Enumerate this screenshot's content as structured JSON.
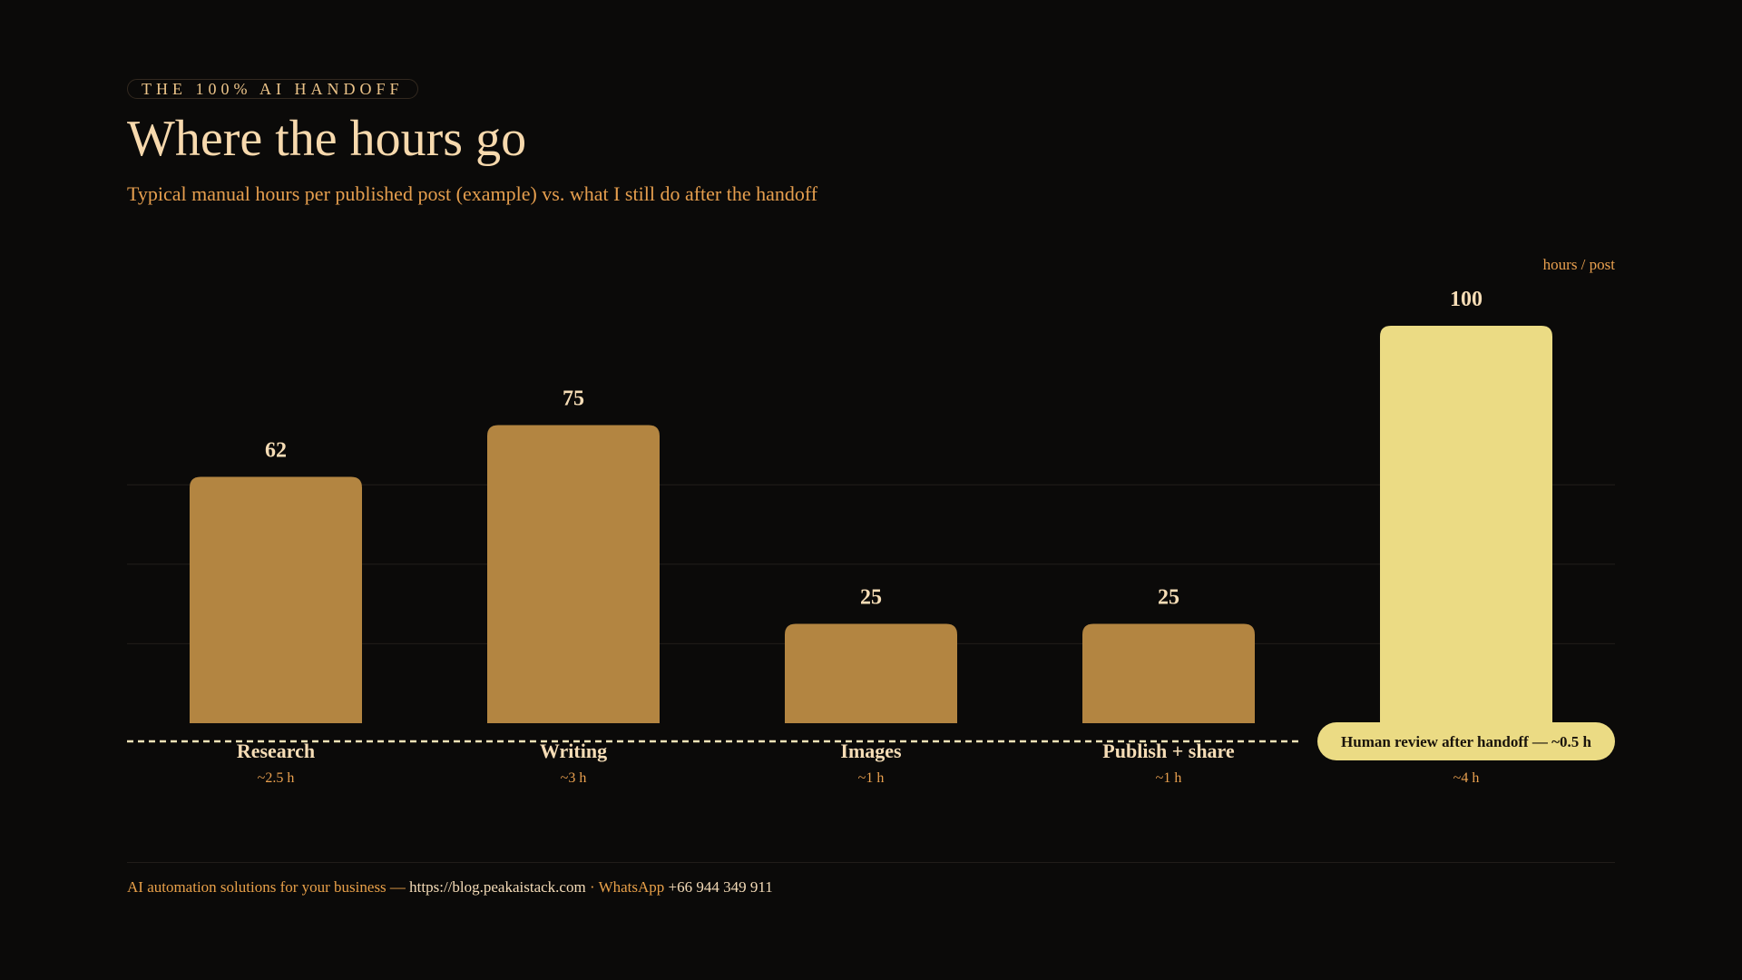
{
  "header": {
    "eyebrow": "THE 100% AI HANDOFF",
    "title": "Where the hours go",
    "subtitle": "Typical manual hours per published post (example) vs. what I still do after the handoff"
  },
  "chart_data": {
    "type": "bar",
    "unit_label": "hours / post",
    "categories": [
      "Research",
      "Writing",
      "Images",
      "Publish + share",
      ""
    ],
    "values": [
      62,
      75,
      25,
      25,
      100
    ],
    "sublabels": [
      "~2.5 h",
      "~3 h",
      "~1 h",
      "~1 h",
      "~4 h"
    ],
    "highlight_index": 4,
    "baseline_label": "Human review after handoff — ~0.5 h",
    "ylim": [
      0,
      100
    ],
    "grid": true,
    "legend": "none",
    "colors": {
      "bar": "#b38541",
      "highlight": "#ebdb84",
      "value_label": "#f6ddb6",
      "sublabel": "#e9a04f",
      "baseline": "#f4e4b8",
      "grid": "#221e1a"
    }
  },
  "footer": {
    "tagline": "AI automation solutions for your business —",
    "url": "https://blog.peakaistack.com",
    "separator": "·",
    "contact_label": "WhatsApp",
    "phone": "+66 944 349 911"
  }
}
